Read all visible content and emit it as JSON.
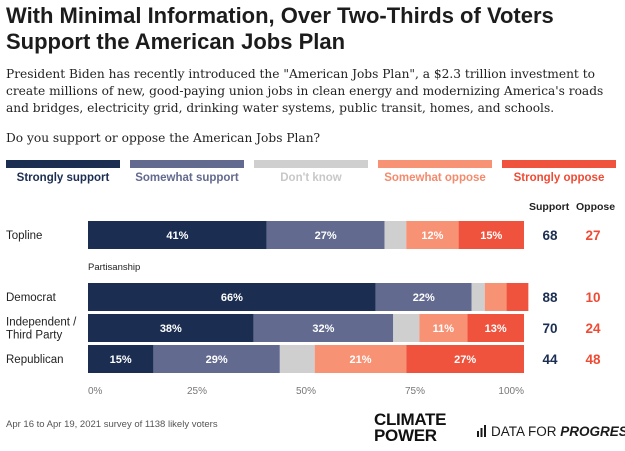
{
  "title": "With Minimal Information, Over Two-Thirds of Voters Support the American Jobs Plan",
  "intro": "President Biden has recently introduced the \"American Jobs Plan\", a $2.3 trillion investment to create millions of new, good-paying union jobs in clean energy and modernizing America's roads and bridges, electricity grid, drinking water systems, public transit, homes, and schools.",
  "question": "Do you support or oppose the American Jobs Plan?",
  "legend": [
    {
      "label": "Strongly support",
      "color": "#1b2e52",
      "text_color": "#1b2e52"
    },
    {
      "label": "Somewhat support",
      "color": "#626a8f",
      "text_color": "#626a8f"
    },
    {
      "label": "Don't know",
      "color": "#cfcfcf",
      "text_color": "#c8c8c8"
    },
    {
      "label": "Somewhat oppose",
      "color": "#f79275",
      "text_color": "#f48a6c"
    },
    {
      "label": "Strongly oppose",
      "color": "#f0533d",
      "text_color": "#ee4b35"
    }
  ],
  "net_headers": {
    "support": "Support",
    "oppose": "Oppose"
  },
  "colors": {
    "support": "#1b2e52",
    "oppose": "#ee4b35"
  },
  "footer": "Apr 16 to Apr 19, 2021 survey of 1138 likely voters",
  "logos": {
    "climate_power_line1": "CLIMATE",
    "climate_power_line2": "POWER",
    "dfp_prefix": "DATA FOR ",
    "dfp_emph": "PROGRESS"
  },
  "chart_data": {
    "type": "bar",
    "orientation": "horizontal",
    "stacked": true,
    "xlim": [
      0,
      100
    ],
    "x_ticks": [
      "0%",
      "25%",
      "50%",
      "75%",
      "100%"
    ],
    "section_labels": [
      {
        "before_row": 1,
        "text": "Partisanship"
      }
    ],
    "categories": [
      {
        "label": "Topline",
        "lines": [
          "Topline"
        ],
        "support": "68",
        "oppose": "27"
      },
      {
        "label": "Democrat",
        "lines": [
          "Democrat"
        ],
        "support": "88",
        "oppose": "10"
      },
      {
        "label": "Independent / Third Party",
        "lines": [
          "Independent /",
          "Third Party"
        ],
        "support": "70",
        "oppose": "24"
      },
      {
        "label": "Republican",
        "lines": [
          "Republican"
        ],
        "support": "44",
        "oppose": "48"
      }
    ],
    "series": [
      {
        "name": "Strongly support",
        "values": [
          41,
          66,
          38,
          15
        ],
        "labels": [
          "41%",
          "66%",
          "38%",
          "15%"
        ]
      },
      {
        "name": "Somewhat support",
        "values": [
          27,
          22,
          32,
          29
        ],
        "labels": [
          "27%",
          "22%",
          "32%",
          "29%"
        ]
      },
      {
        "name": "Don't know",
        "values": [
          5,
          3,
          6,
          8
        ],
        "labels": [
          "",
          "",
          "",
          ""
        ]
      },
      {
        "name": "Somewhat oppose",
        "values": [
          12,
          5,
          11,
          21
        ],
        "labels": [
          "12%",
          "",
          "11%",
          "21%"
        ]
      },
      {
        "name": "Strongly oppose",
        "values": [
          15,
          5,
          13,
          27
        ],
        "labels": [
          "15%",
          "",
          "13%",
          "27%"
        ]
      }
    ]
  }
}
